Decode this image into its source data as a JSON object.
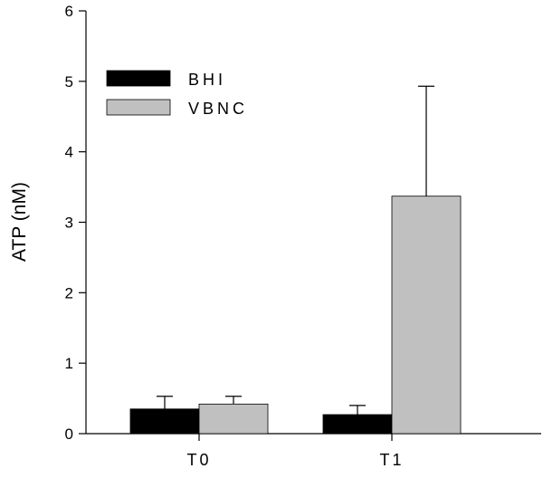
{
  "chart_data": {
    "type": "bar",
    "title": "",
    "xlabel": "",
    "ylabel": "ATP (nM)",
    "ylim": [
      0,
      6
    ],
    "yticks": [
      0,
      1,
      2,
      3,
      4,
      5,
      6
    ],
    "categories": [
      "T0",
      "T1"
    ],
    "series": [
      {
        "name": "BHI",
        "color": "#000000",
        "values": [
          0.35,
          0.27
        ],
        "errors": [
          0.18,
          0.13
        ]
      },
      {
        "name": "VBNC",
        "color": "#c0c0c0",
        "values": [
          0.42,
          3.37
        ],
        "errors": [
          0.11,
          1.56
        ]
      }
    ],
    "legend": "top-left",
    "grid": false
  }
}
